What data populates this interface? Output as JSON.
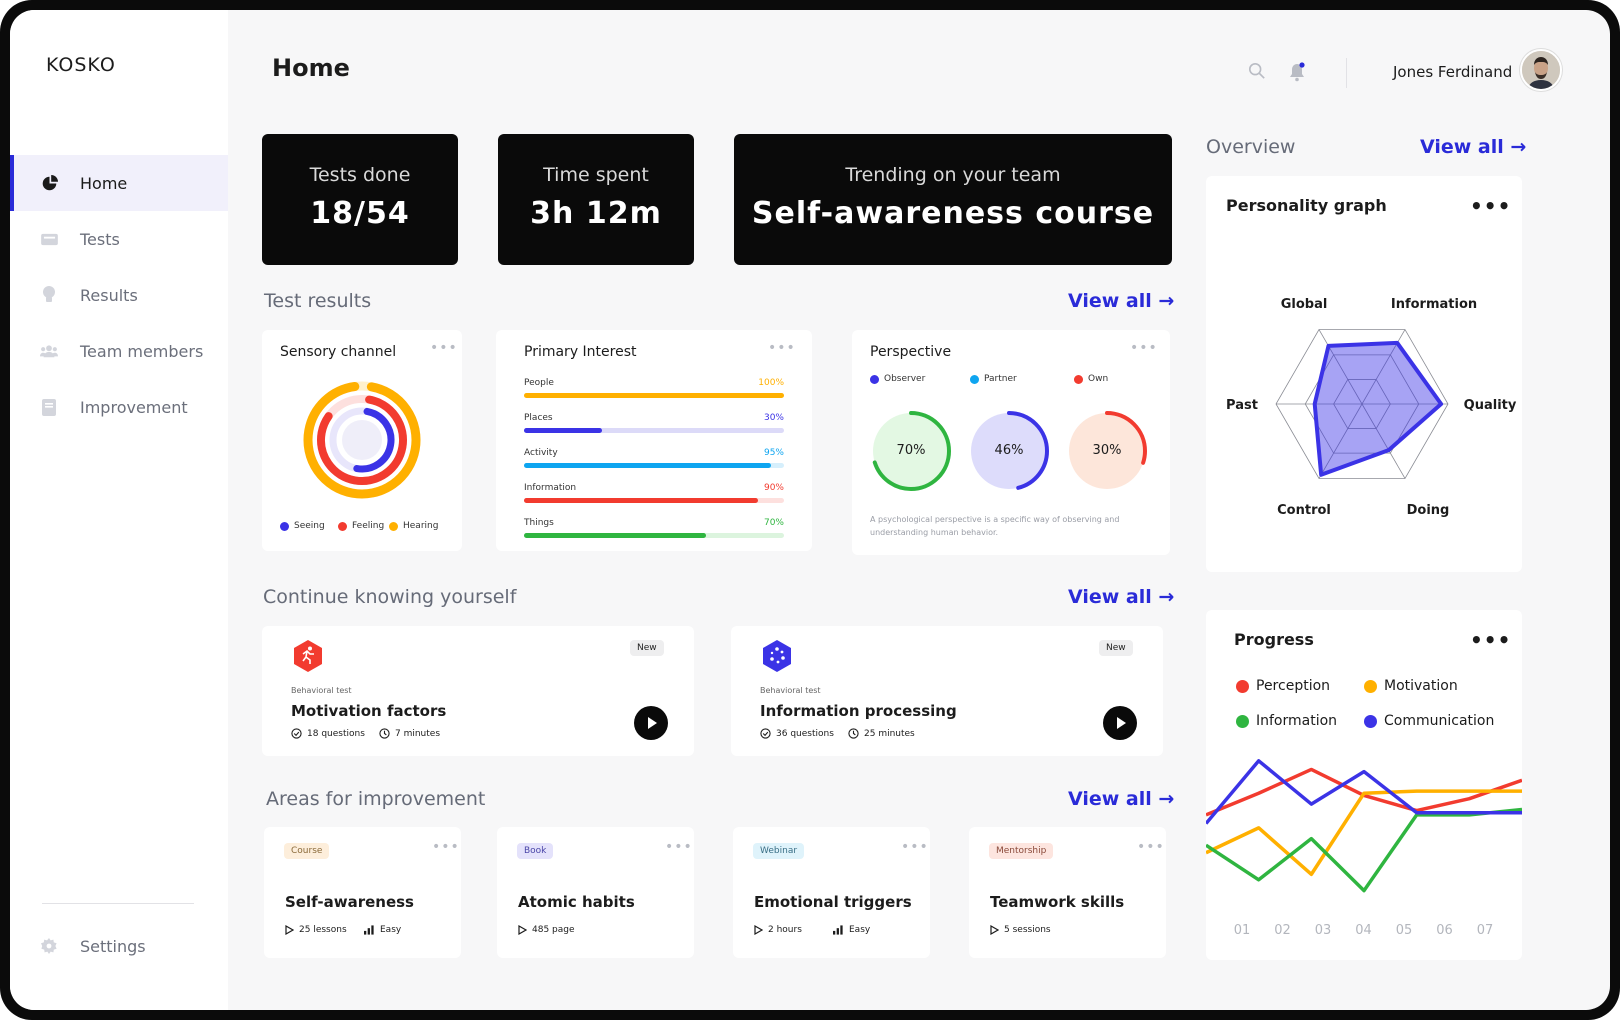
{
  "app": {
    "logo": "KOSKO"
  },
  "header": {
    "title": "Home",
    "user_name": "Jones Ferdinand"
  },
  "sidebar": {
    "items": [
      {
        "label": "Home",
        "icon": "pie-chart-icon",
        "active": true
      },
      {
        "label": "Tests",
        "icon": "ticket-icon"
      },
      {
        "label": "Results",
        "icon": "lightbulb-icon"
      },
      {
        "label": "Team members",
        "icon": "users-icon"
      },
      {
        "label": "Improvement",
        "icon": "book-icon"
      }
    ],
    "settings_label": "Settings"
  },
  "stats": [
    {
      "label": "Tests done",
      "value": "18/54"
    },
    {
      "label": "Time spent",
      "value": "3h 12m"
    },
    {
      "label": "Trending on your team",
      "value": "Self-awareness course"
    }
  ],
  "sections": {
    "test_results": "Test results",
    "continue": "Continue knowing yourself",
    "areas": "Areas for improvement",
    "overview": "Overview",
    "view_all": "View all →"
  },
  "sensory": {
    "title": "Sensory channel",
    "legend": [
      {
        "label": "Seeing",
        "color": "#3b33e6",
        "value": 0.5
      },
      {
        "label": "Feeling",
        "color": "#f23b2f",
        "value": 0.82
      },
      {
        "label": "Hearing",
        "color": "#ffb000",
        "value": 0.95
      }
    ]
  },
  "primary_interest": {
    "title": "Primary Interest",
    "rows": [
      {
        "label": "People",
        "pct": "100%",
        "value": 1.0,
        "color": "#ffb000",
        "track": "#fff1cc"
      },
      {
        "label": "Places",
        "pct": "30%",
        "value": 0.3,
        "color": "#3b33e6",
        "track": "#dcdaf8"
      },
      {
        "label": "Activity",
        "pct": "95%",
        "value": 0.95,
        "color": "#0ea5f0",
        "track": "#d6effc"
      },
      {
        "label": "Information",
        "pct": "90%",
        "value": 0.9,
        "color": "#f23b2f",
        "track": "#fde0de"
      },
      {
        "label": "Things",
        "pct": "70%",
        "value": 0.7,
        "color": "#2fb540",
        "track": "#dcf4de"
      }
    ]
  },
  "perspective": {
    "title": "Perspective",
    "legend": [
      {
        "label": "Observer",
        "color": "#3b33e6"
      },
      {
        "label": "Partner",
        "color": "#0ea5f0"
      },
      {
        "label": "Own",
        "color": "#f23b2f"
      }
    ],
    "circles": [
      {
        "pct": "70%",
        "value": 0.7,
        "fill": "#e3f8e3",
        "stroke": "#2fb540"
      },
      {
        "pct": "46%",
        "value": 0.46,
        "fill": "#dddcfb",
        "stroke": "#3b33e6"
      },
      {
        "pct": "30%",
        "value": 0.3,
        "fill": "#fde6da",
        "stroke": "#f23b2f"
      }
    ],
    "note": "A psychological perspective is a specific way of observing and understanding human behavior."
  },
  "continue_cards": [
    {
      "badge": "New",
      "category": "Behavioral test",
      "title": "Motivation factors",
      "questions": "18 questions",
      "minutes": "7 minutes",
      "icon": "runner-icon",
      "icon_color": "#f23b2f"
    },
    {
      "badge": "New",
      "category": "Behavioral test",
      "title": "Information processing",
      "questions": "36 questions",
      "minutes": "25 minutes",
      "icon": "dots-circle-icon",
      "icon_color": "#3b33e6"
    }
  ],
  "areas": [
    {
      "tag": "Course",
      "tag_bg": "#fdeedb",
      "tag_color": "#8a6a3a",
      "title": "Self-awareness",
      "meta1": "25 lessons",
      "meta2": "Easy"
    },
    {
      "tag": "Book",
      "tag_bg": "#e4e2fb",
      "tag_color": "#4a46a8",
      "title": "Atomic habits",
      "meta1": "485 page",
      "meta2": ""
    },
    {
      "tag": "Webinar",
      "tag_bg": "#dff3fb",
      "tag_color": "#3a6f86",
      "title": "Emotional triggers",
      "meta1": "2 hours",
      "meta2": "Easy"
    },
    {
      "tag": "Mentorship",
      "tag_bg": "#fde5df",
      "tag_color": "#8a4a3a",
      "title": "Teamwork skills",
      "meta1": "5 sessions",
      "meta2": ""
    }
  ],
  "personality": {
    "title": "Personality graph",
    "axes": [
      "Information",
      "Quality",
      "Doing",
      "Control",
      "Past",
      "Global"
    ],
    "values": [
      0.82,
      0.92,
      0.62,
      0.95,
      0.55,
      0.78
    ]
  },
  "progress": {
    "title": "Progress",
    "legend": [
      {
        "label": "Perception",
        "color": "#f23b2f"
      },
      {
        "label": "Motivation",
        "color": "#ffb000"
      },
      {
        "label": "Information",
        "color": "#2fb540"
      },
      {
        "label": "Communication",
        "color": "#3b33e6"
      }
    ]
  },
  "chart_data": {
    "type": "line",
    "x": [
      "01",
      "02",
      "03",
      "04",
      "05",
      "06",
      "07"
    ],
    "ylim": [
      0,
      100
    ],
    "grid": false,
    "series": [
      {
        "name": "Perception",
        "color": "#f23b2f",
        "values": [
          30,
          50,
          72,
          48,
          34,
          45,
          62
        ]
      },
      {
        "name": "Motivation",
        "color": "#ffb000",
        "values": [
          -5,
          18,
          -25,
          50,
          52,
          52,
          52
        ]
      },
      {
        "name": "Information",
        "color": "#2fb540",
        "values": [
          2,
          -30,
          8,
          -40,
          30,
          30,
          35
        ]
      },
      {
        "name": "Communication",
        "color": "#3b33e6",
        "values": [
          22,
          80,
          40,
          70,
          32,
          32,
          32
        ]
      }
    ]
  }
}
